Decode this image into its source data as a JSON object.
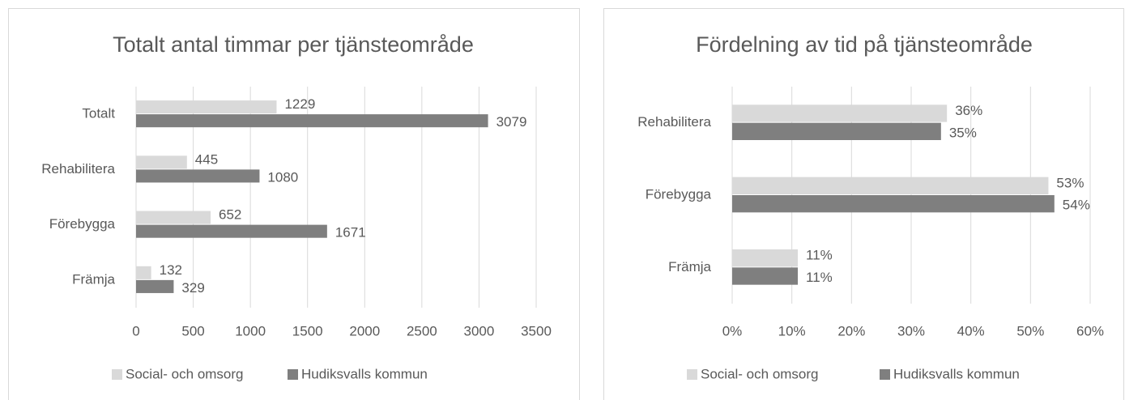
{
  "chart_data": [
    {
      "type": "bar",
      "orientation": "horizontal",
      "title": "Totalt antal timmar per tjänsteområde",
      "categories": [
        "Totalt",
        "Rehabilitera",
        "Förebygga",
        "Främja"
      ],
      "series": [
        {
          "name": "Social- och omsorg",
          "color": "#d9d9d9",
          "values": [
            1229,
            445,
            652,
            132
          ]
        },
        {
          "name": "Hudiksvalls kommun",
          "color": "#7f7f7f",
          "values": [
            3079,
            1080,
            1671,
            329
          ]
        }
      ],
      "xlim": [
        0,
        3500
      ],
      "xticks": [
        0,
        500,
        1000,
        1500,
        2000,
        2500,
        3000,
        3500
      ],
      "grid": true,
      "legend": "bottom"
    },
    {
      "type": "bar",
      "orientation": "horizontal",
      "title": "Fördelning av tid på tjänsteområde",
      "categories": [
        "Rehabilitera",
        "Förebygga",
        "Främja"
      ],
      "series": [
        {
          "name": "Social- och omsorg",
          "color": "#d9d9d9",
          "values": [
            36,
            53,
            11
          ],
          "value_labels": [
            "36%",
            "53%",
            "11%"
          ]
        },
        {
          "name": "Hudiksvalls kommun",
          "color": "#7f7f7f",
          "values": [
            35,
            54,
            11
          ],
          "value_labels": [
            "35%",
            "54%",
            "11%"
          ]
        }
      ],
      "xlim": [
        0,
        60
      ],
      "xticks": [
        {
          "value": 0,
          "label": "0%"
        },
        {
          "value": 10,
          "label": "10%"
        },
        {
          "value": 20,
          "label": "20%"
        },
        {
          "value": 30,
          "label": "30%"
        },
        {
          "value": 40,
          "label": "40%"
        },
        {
          "value": 50,
          "label": "50%"
        },
        {
          "value": 60,
          "label": "60%"
        }
      ],
      "grid": true,
      "legend": "bottom"
    }
  ]
}
